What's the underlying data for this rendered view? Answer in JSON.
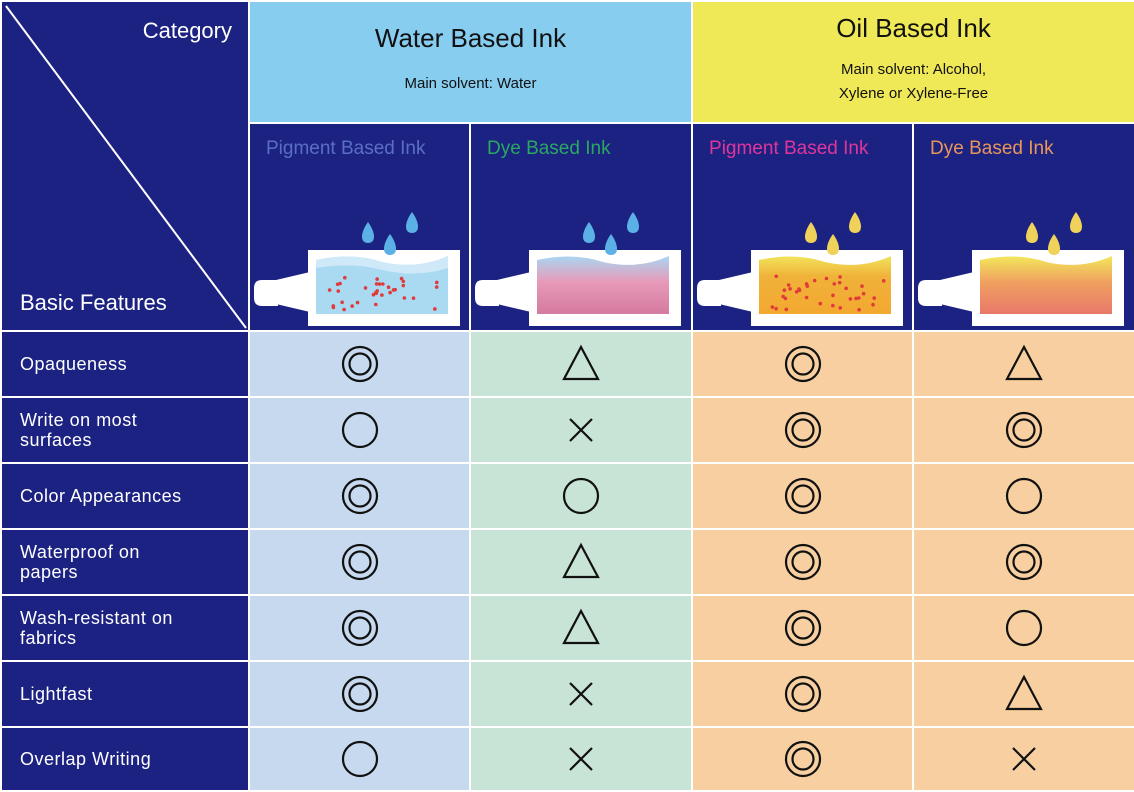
{
  "header": {
    "category_label": "Category",
    "features_label": "Basic Features"
  },
  "groups": [
    {
      "title": "Water Based Ink",
      "subtitle_lines": [
        "Main solvent: Water"
      ],
      "color": "#87cdf0"
    },
    {
      "title": "Oil Based Ink",
      "subtitle_lines": [
        "Main solvent: Alcohol,",
        "Xylene or Xylene-Free"
      ],
      "color": "#f0e957"
    }
  ],
  "ink_types": [
    {
      "name": "Pigment Based Ink",
      "text_color": "#5a6fc4",
      "group": "water",
      "ink": "pigment",
      "drop_color": "#5bb0e6"
    },
    {
      "name": "Dye Based Ink",
      "text_color": "#2aa860",
      "group": "water",
      "ink": "dye",
      "drop_color": "#5bb0e6"
    },
    {
      "name": "Pigment Based Ink",
      "text_color": "#e0359a",
      "group": "oil",
      "ink": "pigment",
      "drop_color": "#f0d25a"
    },
    {
      "name": "Dye Based Ink",
      "text_color": "#e8955a",
      "group": "oil",
      "ink": "dye",
      "drop_color": "#f0d25a"
    }
  ],
  "features": [
    {
      "label": "Opaqueness",
      "ratings": [
        "double-circle-icon",
        "triangle-icon",
        "double-circle-icon",
        "triangle-icon"
      ]
    },
    {
      "label": "Write on most surfaces",
      "ratings": [
        "circle-icon",
        "cross-icon",
        "double-circle-icon",
        "double-circle-icon"
      ]
    },
    {
      "label": "Color Appearances",
      "ratings": [
        "double-circle-icon",
        "circle-icon",
        "double-circle-icon",
        "circle-icon"
      ]
    },
    {
      "label": "Waterproof on papers",
      "ratings": [
        "double-circle-icon",
        "triangle-icon",
        "double-circle-icon",
        "double-circle-icon"
      ]
    },
    {
      "label": "Wash-resistant on fabrics",
      "ratings": [
        "double-circle-icon",
        "triangle-icon",
        "double-circle-icon",
        "circle-icon"
      ]
    },
    {
      "label": "Lightfast",
      "ratings": [
        "double-circle-icon",
        "cross-icon",
        "double-circle-icon",
        "triangle-icon"
      ]
    },
    {
      "label": "Overlap Writing",
      "ratings": [
        "circle-icon",
        "cross-icon",
        "double-circle-icon",
        "cross-icon"
      ]
    }
  ],
  "colors": {
    "navy": "#1c2282",
    "water_header": "#87cdf0",
    "oil_header": "#f0e957",
    "water_pigment_cell": "#c7d9ef",
    "water_dye_cell": "#c8e4d6",
    "oil_cell": "#f7cfa1"
  }
}
